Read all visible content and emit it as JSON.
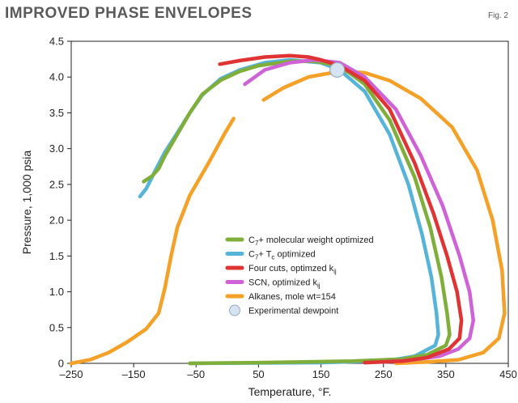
{
  "header": {
    "title": "Improved phase envelopes",
    "fig_label": "Fig. 2"
  },
  "colors": {
    "green": "#7fae3a",
    "blue": "#56b4d8",
    "red": "#e03434",
    "magenta": "#cf62d6",
    "orange": "#f5a026",
    "dew": "#d5e4f3"
  },
  "chart_data": {
    "type": "line",
    "title": "Improved phase envelopes",
    "xlabel": "Temperature, °F.",
    "ylabel": "Pressure, 1,000 psia",
    "xlim": [
      -250,
      450
    ],
    "ylim": [
      0,
      4.5
    ],
    "xticks": [
      "–250",
      "–150",
      "–50",
      "50",
      "150",
      "250",
      "350",
      "450"
    ],
    "xtick_values": [
      -250,
      -150,
      -50,
      50,
      150,
      250,
      350,
      450
    ],
    "yticks": [
      "0",
      "0.5",
      "1.0",
      "1.5",
      "2.0",
      "2.5",
      "3.0",
      "3.5",
      "4.0",
      "4.5"
    ],
    "ytick_values": [
      0,
      0.5,
      1.0,
      1.5,
      2.0,
      2.5,
      3.0,
      3.5,
      4.0,
      4.5
    ],
    "grid": false,
    "legend_position": "center-right",
    "series": [
      {
        "label": "C",
        "label_sub": "7",
        "label_rest": "+ molecular weight optimized",
        "color_key": "green",
        "segments": [
          [
            [
              -134,
              2.54
            ],
            [
              -120,
              2.62
            ],
            [
              -110,
              2.72
            ],
            [
              -100,
              2.9
            ],
            [
              -80,
              3.2
            ],
            [
              -60,
              3.5
            ],
            [
              -40,
              3.76
            ],
            [
              -10,
              3.96
            ],
            [
              20,
              4.08
            ],
            [
              50,
              4.16
            ],
            [
              100,
              4.22
            ],
            [
              140,
              4.22
            ],
            [
              180,
              4.16
            ],
            [
              220,
              3.9
            ],
            [
              260,
              3.4
            ],
            [
              300,
              2.6
            ],
            [
              325,
              1.9
            ],
            [
              343,
              1.2
            ],
            [
              352,
              0.7
            ],
            [
              356,
              0.4
            ],
            [
              350,
              0.25
            ],
            [
              320,
              0.12
            ],
            [
              280,
              0.06
            ],
            [
              200,
              0.03
            ],
            [
              50,
              0.01
            ],
            [
              -60,
              0.0
            ]
          ]
        ]
      },
      {
        "label": "C",
        "label_sub": "7",
        "label_rest": "+ T",
        "label_sub2": "c",
        "label_rest2": " optimized",
        "color_key": "blue",
        "segments": [
          [
            [
              -140,
              2.33
            ],
            [
              -130,
              2.44
            ],
            [
              -115,
              2.7
            ],
            [
              -100,
              2.95
            ],
            [
              -80,
              3.22
            ],
            [
              -60,
              3.5
            ],
            [
              -40,
              3.75
            ],
            [
              -10,
              3.98
            ],
            [
              20,
              4.1
            ],
            [
              60,
              4.2
            ],
            [
              100,
              4.24
            ],
            [
              150,
              4.2
            ],
            [
              180,
              4.1
            ],
            [
              220,
              3.8
            ],
            [
              260,
              3.2
            ],
            [
              290,
              2.5
            ],
            [
              312,
              1.8
            ],
            [
              327,
              1.2
            ],
            [
              335,
              0.7
            ],
            [
              338,
              0.4
            ],
            [
              333,
              0.25
            ],
            [
              300,
              0.1
            ],
            [
              260,
              0.04
            ],
            [
              150,
              0.01
            ],
            [
              -60,
              0.0
            ]
          ]
        ]
      },
      {
        "label": "Four cuts, optimzed k",
        "label_sub": "ij",
        "color_key": "red",
        "segments": [
          [
            [
              -12,
              4.18
            ],
            [
              20,
              4.23
            ],
            [
              60,
              4.28
            ],
            [
              100,
              4.3
            ],
            [
              130,
              4.28
            ],
            [
              150,
              4.24
            ],
            [
              180,
              4.16
            ],
            [
              220,
              3.95
            ],
            [
              260,
              3.55
            ],
            [
              300,
              2.8
            ],
            [
              330,
              2.1
            ],
            [
              352,
              1.5
            ],
            [
              368,
              1.0
            ],
            [
              375,
              0.6
            ],
            [
              372,
              0.35
            ],
            [
              355,
              0.2
            ],
            [
              320,
              0.08
            ],
            [
              280,
              0.03
            ],
            [
              220,
              0.01
            ]
          ]
        ]
      },
      {
        "label": "SCN, optimized k",
        "label_sub": "ij",
        "color_key": "magenta",
        "segments": [
          [
            [
              28,
              3.9
            ],
            [
              60,
              4.1
            ],
            [
              100,
              4.2
            ],
            [
              140,
              4.24
            ],
            [
              180,
              4.2
            ],
            [
              220,
              4.0
            ],
            [
              270,
              3.55
            ],
            [
              310,
              2.9
            ],
            [
              345,
              2.2
            ],
            [
              372,
              1.5
            ],
            [
              388,
              1.0
            ],
            [
              394,
              0.6
            ],
            [
              388,
              0.35
            ],
            [
              370,
              0.2
            ],
            [
              340,
              0.1
            ],
            [
              290,
              0.04
            ],
            [
              250,
              0.02
            ]
          ]
        ]
      },
      {
        "label": "Alkanes, mole wt=154",
        "color_key": "orange",
        "segments": [
          [
            [
              -250,
              0.0
            ],
            [
              -220,
              0.05
            ],
            [
              -190,
              0.15
            ],
            [
              -160,
              0.3
            ],
            [
              -130,
              0.48
            ],
            [
              -110,
              0.7
            ],
            [
              -100,
              1.05
            ],
            [
              -90,
              1.5
            ],
            [
              -80,
              1.9
            ],
            [
              -60,
              2.35
            ],
            [
              -30,
              2.8
            ],
            [
              -5,
              3.2
            ],
            [
              10,
              3.42
            ]
          ],
          [
            [
              58,
              3.68
            ],
            [
              90,
              3.85
            ],
            [
              130,
              4.0
            ],
            [
              180,
              4.08
            ],
            [
              220,
              4.06
            ],
            [
              260,
              3.95
            ],
            [
              310,
              3.7
            ],
            [
              360,
              3.3
            ],
            [
              400,
              2.7
            ],
            [
              425,
              2.0
            ],
            [
              440,
              1.3
            ],
            [
              444,
              0.7
            ],
            [
              435,
              0.35
            ],
            [
              410,
              0.15
            ],
            [
              370,
              0.05
            ],
            [
              320,
              0.02
            ],
            [
              270,
              0.0
            ]
          ]
        ]
      }
    ],
    "dewpoint": {
      "label": "Experimental dewpoint",
      "x": 176,
      "y": 4.1
    }
  }
}
